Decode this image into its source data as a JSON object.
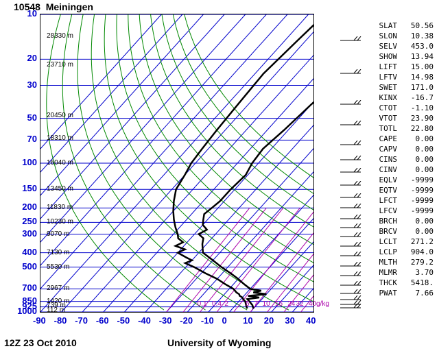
{
  "header": {
    "station_id": "10548",
    "station_name": "Meiningen"
  },
  "footer": {
    "datetime": "12Z 23 Oct 2010",
    "source": "University of Wyoming"
  },
  "axes": {
    "pressure": [
      10,
      20,
      30,
      50,
      70,
      100,
      150,
      200,
      250,
      300,
      400,
      500,
      700,
      850,
      925,
      1000
    ],
    "temperature": [
      -90,
      -80,
      -70,
      -60,
      -50,
      -40,
      -30,
      -20,
      -10,
      0,
      10,
      20,
      30,
      40
    ],
    "xmin": -90,
    "xmax": 40,
    "pmin": 10,
    "pmax": 1000,
    "grid_color": "#0000cc",
    "isotherm_color": "#0000cc",
    "adiabat_color": "#008800",
    "mixing_color": "#aa00aa",
    "line_color": "#000",
    "line_width": 2
  },
  "altitudes": [
    {
      "p": 14,
      "label": "28330 m"
    },
    {
      "p": 22,
      "label": "23710 m"
    },
    {
      "p": 48,
      "label": "20450 m"
    },
    {
      "p": 68,
      "label": "18310 m"
    },
    {
      "p": 100,
      "label": "16040 m"
    },
    {
      "p": 150,
      "label": "13450 m"
    },
    {
      "p": 200,
      "label": "11830 m"
    },
    {
      "p": 250,
      "label": "10230 m"
    },
    {
      "p": 300,
      "label": "9070 m"
    },
    {
      "p": 400,
      "label": "7130 m"
    },
    {
      "p": 500,
      "label": "5530 m"
    },
    {
      "p": 700,
      "label": "2967 m"
    },
    {
      "p": 850,
      "label": "1420 m"
    },
    {
      "p": 910,
      "label": "739 m"
    },
    {
      "p": 975,
      "label": "112 m"
    }
  ],
  "mixing_labels": [
    {
      "t": -15,
      "label": "0.1"
    },
    {
      "t": -8,
      "label": "0.4"
    },
    {
      "t": -2,
      "label": "2"
    },
    {
      "t": 8,
      "label": "5"
    },
    {
      "t": 12,
      "label": "7"
    },
    {
      "t": 16,
      "label": "10"
    },
    {
      "t": 22,
      "label": "16"
    },
    {
      "t": 28,
      "label": "24"
    },
    {
      "t": 32,
      "label": "32"
    },
    {
      "t": 38,
      "label": "40g/kg"
    }
  ],
  "temp_profile": [
    {
      "p": 950,
      "t": 10
    },
    {
      "p": 900,
      "t": 8
    },
    {
      "p": 850,
      "t": 5
    },
    {
      "p": 820,
      "t": 3
    },
    {
      "p": 800,
      "t": 8
    },
    {
      "p": 780,
      "t": 2
    },
    {
      "p": 760,
      "t": 10
    },
    {
      "p": 740,
      "t": 3
    },
    {
      "p": 720,
      "t": 6
    },
    {
      "p": 700,
      "t": 0
    },
    {
      "p": 650,
      "t": -5
    },
    {
      "p": 600,
      "t": -10
    },
    {
      "p": 550,
      "t": -16
    },
    {
      "p": 500,
      "t": -23
    },
    {
      "p": 450,
      "t": -30
    },
    {
      "p": 400,
      "t": -38
    },
    {
      "p": 350,
      "t": -42
    },
    {
      "p": 320,
      "t": -44
    },
    {
      "p": 300,
      "t": -48
    },
    {
      "p": 280,
      "t": -46
    },
    {
      "p": 260,
      "t": -50
    },
    {
      "p": 240,
      "t": -52
    },
    {
      "p": 220,
      "t": -54
    },
    {
      "p": 200,
      "t": -53
    },
    {
      "p": 180,
      "t": -52
    },
    {
      "p": 150,
      "t": -52
    },
    {
      "p": 120,
      "t": -51
    },
    {
      "p": 100,
      "t": -53
    },
    {
      "p": 80,
      "t": -54
    },
    {
      "p": 60,
      "t": -52
    },
    {
      "p": 40,
      "t": -50
    },
    {
      "p": 30,
      "t": -48
    },
    {
      "p": 20,
      "t": -46
    },
    {
      "p": 15,
      "t": -45
    },
    {
      "p": 12,
      "t": -48
    },
    {
      "p": 10,
      "t": -44
    }
  ],
  "dew_profile": [
    {
      "p": 950,
      "t": 7
    },
    {
      "p": 900,
      "t": 5
    },
    {
      "p": 850,
      "t": 3
    },
    {
      "p": 820,
      "t": 1
    },
    {
      "p": 800,
      "t": 0
    },
    {
      "p": 780,
      "t": -2
    },
    {
      "p": 760,
      "t": -3
    },
    {
      "p": 740,
      "t": -5
    },
    {
      "p": 700,
      "t": -8
    },
    {
      "p": 650,
      "t": -14
    },
    {
      "p": 600,
      "t": -20
    },
    {
      "p": 550,
      "t": -28
    },
    {
      "p": 500,
      "t": -36
    },
    {
      "p": 470,
      "t": -42
    },
    {
      "p": 450,
      "t": -40
    },
    {
      "p": 430,
      "t": -44
    },
    {
      "p": 400,
      "t": -50
    },
    {
      "p": 380,
      "t": -48
    },
    {
      "p": 360,
      "t": -54
    },
    {
      "p": 340,
      "t": -52
    },
    {
      "p": 320,
      "t": -56
    },
    {
      "p": 300,
      "t": -58
    },
    {
      "p": 270,
      "t": -62
    },
    {
      "p": 240,
      "t": -66
    },
    {
      "p": 210,
      "t": -70
    },
    {
      "p": 180,
      "t": -74
    },
    {
      "p": 150,
      "t": -78
    },
    {
      "p": 120,
      "t": -80
    },
    {
      "p": 100,
      "t": -82
    },
    {
      "p": 80,
      "t": -83
    },
    {
      "p": 60,
      "t": -84
    },
    {
      "p": 40,
      "t": -85
    },
    {
      "p": 25,
      "t": -86
    },
    {
      "p": 15,
      "t": -84
    },
    {
      "p": 12,
      "t": -83
    },
    {
      "p": 10,
      "t": -82
    }
  ],
  "barbs": [
    {
      "p": 15
    },
    {
      "p": 25
    },
    {
      "p": 40
    },
    {
      "p": 55
    },
    {
      "p": 75
    },
    {
      "p": 95
    },
    {
      "p": 115
    },
    {
      "p": 140
    },
    {
      "p": 170
    },
    {
      "p": 200
    },
    {
      "p": 235
    },
    {
      "p": 270
    },
    {
      "p": 310
    },
    {
      "p": 360
    },
    {
      "p": 420
    },
    {
      "p": 490
    },
    {
      "p": 570
    },
    {
      "p": 660
    },
    {
      "p": 750
    },
    {
      "p": 830
    },
    {
      "p": 890
    },
    {
      "p": 940
    }
  ],
  "indices": [
    {
      "k": "SLAT",
      "v": "50.56"
    },
    {
      "k": "SLON",
      "v": "10.38"
    },
    {
      "k": "SELV",
      "v": "453.0"
    },
    {
      "k": "SHOW",
      "v": "13.94"
    },
    {
      "k": "LIFT",
      "v": "15.00"
    },
    {
      "k": "LFTV",
      "v": "14.98"
    },
    {
      "k": "SWET",
      "v": "171.0"
    },
    {
      "k": "KINX",
      "v": "-16.7"
    },
    {
      "k": "CTOT",
      "v": "-1.10"
    },
    {
      "k": "VTOT",
      "v": "23.90"
    },
    {
      "k": "TOTL",
      "v": "22.80"
    },
    {
      "k": "CAPE",
      "v": "0.00"
    },
    {
      "k": "CAPV",
      "v": "0.00"
    },
    {
      "k": "CINS",
      "v": "0.00"
    },
    {
      "k": "CINV",
      "v": "0.00"
    },
    {
      "k": "EQLV",
      "v": "-9999"
    },
    {
      "k": "EQTV",
      "v": "-9999"
    },
    {
      "k": "LFCT",
      "v": "-9999"
    },
    {
      "k": "LFCV",
      "v": "-9999"
    },
    {
      "k": "BRCH",
      "v": "0.00"
    },
    {
      "k": "BRCV",
      "v": "0.00"
    },
    {
      "k": "LCLT",
      "v": "271.2"
    },
    {
      "k": "LCLP",
      "v": "904.0"
    },
    {
      "k": "MLTH",
      "v": "279.2"
    },
    {
      "k": "MLMR",
      "v": "3.70"
    },
    {
      "k": "THCK",
      "v": "5418."
    },
    {
      "k": "PWAT",
      "v": "7.66"
    }
  ]
}
